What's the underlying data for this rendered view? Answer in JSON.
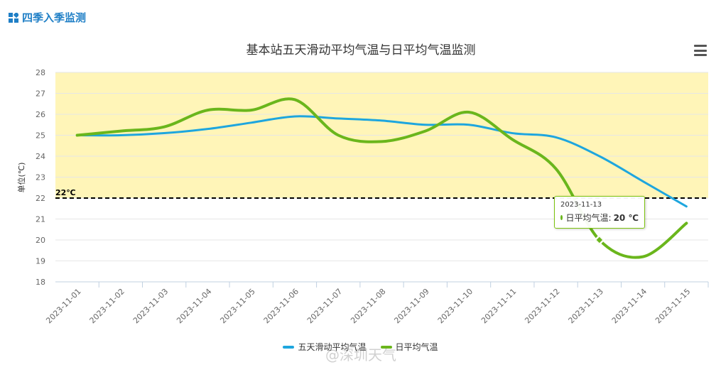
{
  "header": {
    "title": "四季入季监测"
  },
  "chart_data": {
    "type": "line",
    "title": "基本站五天滑动平均气温与日平均气温监测",
    "ylabel": "单位(℃)",
    "xlabel": "",
    "ylim": [
      18,
      28
    ],
    "yticks": [
      18,
      19,
      20,
      21,
      22,
      23,
      24,
      25,
      26,
      27,
      28
    ],
    "categories": [
      "2023-11-01",
      "2023-11-02",
      "2023-11-03",
      "2023-11-04",
      "2023-11-05",
      "2023-11-06",
      "2023-11-07",
      "2023-11-08",
      "2023-11-09",
      "2023-11-10",
      "2023-11-11",
      "2023-11-12",
      "2023-11-13",
      "2023-11-14",
      "2023-11-15"
    ],
    "series": [
      {
        "name": "五天滑动平均气温",
        "color": "#1ea6de",
        "values": [
          25.0,
          25.0,
          25.1,
          25.3,
          25.6,
          25.9,
          25.8,
          25.7,
          25.5,
          25.5,
          25.1,
          24.9,
          24.0,
          22.8,
          21.6
        ]
      },
      {
        "name": "日平均气温",
        "color": "#6ab61c",
        "values": [
          25.0,
          25.2,
          25.4,
          26.2,
          26.2,
          26.7,
          25.0,
          24.7,
          25.2,
          26.1,
          24.8,
          23.4,
          20.0,
          19.2,
          20.8
        ]
      }
    ],
    "threshold": {
      "value": 22,
      "label": "22℃"
    },
    "band": {
      "from": 22,
      "to": 28,
      "color": "#fff5b8"
    },
    "grid": true,
    "legend": "bottom-center"
  },
  "tooltip": {
    "date": "2023-11-13",
    "series_label": "日平均气温: ",
    "value": "20 ℃"
  },
  "watermark": "@深圳天气"
}
